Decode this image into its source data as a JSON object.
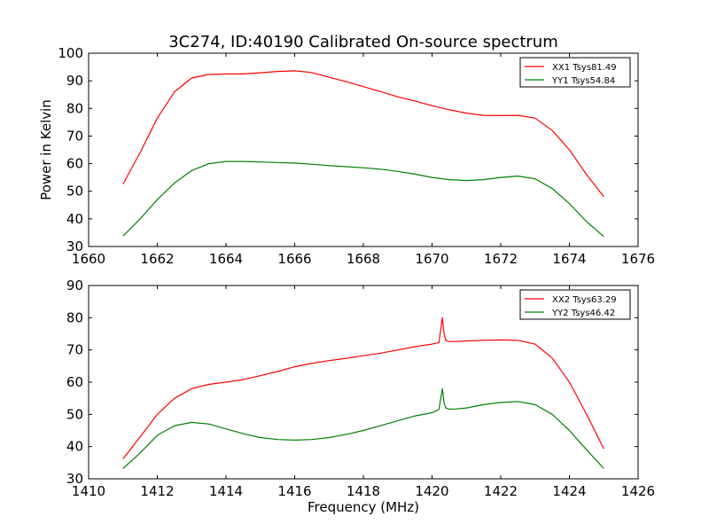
{
  "figure": {
    "title": "3C274, ID:40190 Calibrated On-source spectrum"
  },
  "chart_data": [
    {
      "type": "line",
      "title": "3C274, ID:40190 Calibrated On-source spectrum",
      "xlabel": "",
      "ylabel": "Power in Kelvin",
      "xlim": [
        1660,
        1676
      ],
      "ylim": [
        30,
        100
      ],
      "xticks": [
        1660,
        1662,
        1664,
        1666,
        1668,
        1670,
        1672,
        1674,
        1676
      ],
      "yticks": [
        30,
        40,
        50,
        60,
        70,
        80,
        90,
        100
      ],
      "grid": false,
      "legend_position": "top-right",
      "series": [
        {
          "name": "XX1 Tsys81.49",
          "color": "#ff0000",
          "x": [
            1661.0,
            1661.5,
            1662.0,
            1662.5,
            1663.0,
            1663.5,
            1664.0,
            1664.5,
            1665.0,
            1665.5,
            1666.0,
            1666.5,
            1667.0,
            1667.5,
            1668.0,
            1668.5,
            1669.0,
            1669.5,
            1670.0,
            1670.5,
            1671.0,
            1671.5,
            1672.0,
            1672.5,
            1673.0,
            1673.5,
            1674.0,
            1674.5,
            1675.0
          ],
          "y": [
            52.6,
            64.0,
            76.5,
            86.0,
            91.0,
            92.3,
            92.5,
            92.5,
            92.9,
            93.4,
            93.6,
            93.0,
            91.3,
            89.7,
            87.9,
            86.1,
            84.2,
            82.7,
            81.0,
            79.5,
            78.3,
            77.5,
            77.4,
            77.5,
            76.5,
            72.0,
            65.0,
            56.0,
            48.0
          ]
        },
        {
          "name": "YY1 Tsys54.84",
          "color": "#008000",
          "x": [
            1661.0,
            1661.5,
            1662.0,
            1662.5,
            1663.0,
            1663.5,
            1664.0,
            1664.5,
            1665.0,
            1665.5,
            1666.0,
            1666.5,
            1667.0,
            1667.5,
            1668.0,
            1668.5,
            1669.0,
            1669.5,
            1670.0,
            1670.5,
            1671.0,
            1671.5,
            1672.0,
            1672.5,
            1673.0,
            1673.5,
            1674.0,
            1674.5,
            1675.0
          ],
          "y": [
            33.8,
            40.0,
            47.0,
            53.0,
            57.5,
            60.0,
            60.8,
            60.8,
            60.6,
            60.4,
            60.2,
            59.8,
            59.3,
            58.9,
            58.5,
            58.0,
            57.2,
            56.2,
            55.0,
            54.2,
            53.9,
            54.2,
            55.0,
            55.5,
            54.5,
            51.0,
            45.5,
            39.0,
            33.6
          ]
        }
      ]
    },
    {
      "type": "line",
      "title": "",
      "xlabel": "Frequency (MHz)",
      "ylabel": "",
      "xlim": [
        1410,
        1426
      ],
      "ylim": [
        30,
        90
      ],
      "xticks": [
        1410,
        1412,
        1414,
        1416,
        1418,
        1420,
        1422,
        1424,
        1426
      ],
      "yticks": [
        30,
        40,
        50,
        60,
        70,
        80,
        90
      ],
      "grid": false,
      "legend_position": "top-right",
      "series": [
        {
          "name": "XX2 Tsys63.29",
          "color": "#ff0000",
          "x": [
            1411.0,
            1411.5,
            1412.0,
            1412.5,
            1413.0,
            1413.5,
            1414.0,
            1414.5,
            1415.0,
            1415.5,
            1416.0,
            1416.5,
            1417.0,
            1417.5,
            1418.0,
            1418.5,
            1419.0,
            1419.5,
            1420.0,
            1420.2,
            1420.3,
            1420.35,
            1420.4,
            1420.5,
            1420.7,
            1421.0,
            1421.5,
            1422.0,
            1422.5,
            1423.0,
            1423.5,
            1424.0,
            1424.5,
            1425.0
          ],
          "y": [
            36.2,
            43.0,
            50.0,
            55.0,
            58.0,
            59.3,
            60.0,
            60.8,
            62.0,
            63.3,
            64.8,
            65.8,
            66.7,
            67.4,
            68.2,
            69.0,
            70.0,
            71.0,
            71.8,
            72.3,
            80.0,
            75.0,
            73.0,
            72.6,
            72.6,
            72.8,
            73.0,
            73.1,
            73.0,
            71.8,
            67.5,
            60.0,
            50.0,
            39.3
          ]
        },
        {
          "name": "YY2 Tsys46.42",
          "color": "#008000",
          "x": [
            1411.0,
            1411.5,
            1412.0,
            1412.5,
            1413.0,
            1413.5,
            1414.0,
            1414.5,
            1415.0,
            1415.5,
            1416.0,
            1416.5,
            1417.0,
            1417.5,
            1418.0,
            1418.5,
            1419.0,
            1419.5,
            1420.0,
            1420.2,
            1420.3,
            1420.35,
            1420.4,
            1420.5,
            1420.7,
            1421.0,
            1421.5,
            1422.0,
            1422.5,
            1423.0,
            1423.5,
            1424.0,
            1424.5,
            1425.0
          ],
          "y": [
            33.2,
            38.0,
            43.5,
            46.5,
            47.5,
            47.0,
            45.5,
            44.0,
            42.8,
            42.2,
            42.0,
            42.2,
            42.8,
            43.8,
            45.0,
            46.5,
            48.0,
            49.5,
            50.5,
            51.5,
            58.0,
            53.5,
            52.0,
            51.6,
            51.7,
            52.0,
            53.0,
            53.7,
            54.0,
            53.0,
            50.0,
            45.0,
            39.0,
            33.2
          ]
        }
      ]
    }
  ]
}
